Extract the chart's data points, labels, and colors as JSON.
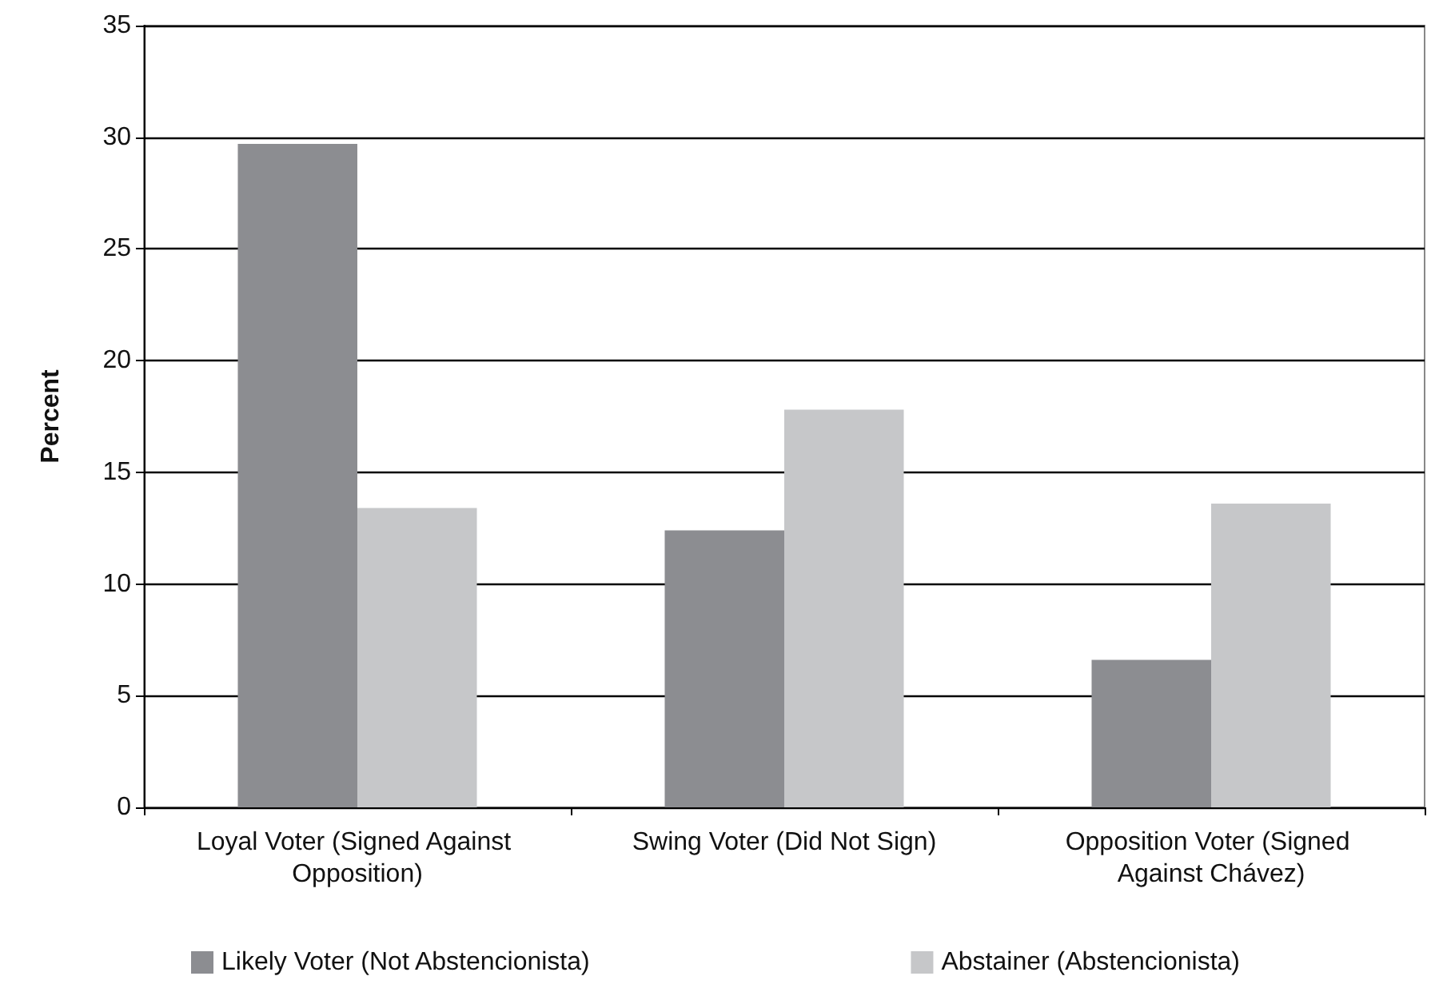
{
  "chart_data": {
    "type": "bar",
    "ylabel": "Percent",
    "categories": [
      "Loyal Voter (Signed Against Opposition)",
      "Swing Voter (Did Not Sign)",
      "Opposition Voter (Signed Against Chávez)"
    ],
    "series": [
      {
        "name": "Likely Voter (Not Abstencionista)",
        "color": "#8c8d91",
        "values": [
          29.7,
          12.4,
          6.6
        ]
      },
      {
        "name": "Abstainer (Abstencionista)",
        "color": "#c6c7c9",
        "values": [
          13.4,
          17.8,
          13.6
        ]
      }
    ],
    "ylim": [
      0,
      35
    ],
    "yticks": [
      0,
      5,
      10,
      15,
      20,
      25,
      30,
      35
    ],
    "grid": "y",
    "legend": "bottom"
  }
}
